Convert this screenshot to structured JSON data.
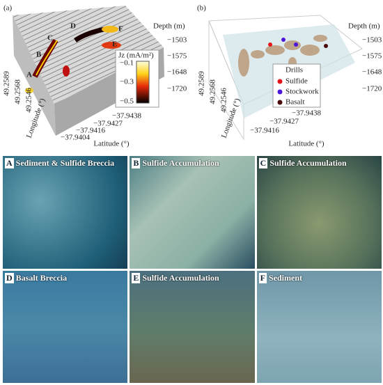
{
  "panel_a": {
    "label": "(a)",
    "depth_label": "Depth (m)",
    "depth_ticks": [
      "−1503",
      "−1575",
      "−1648",
      "−1720"
    ],
    "longitude_label": "Longitude (°)",
    "longitude_ticks": [
      "49.2589",
      "49.2568",
      "49.2546"
    ],
    "latitude_label": "Latitude (°)",
    "latitude_ticks": [
      "−37.9404",
      "−37.9416",
      "−37.9427",
      "−37.9438"
    ],
    "site_labels": [
      "A",
      "B",
      "C",
      "D",
      "E",
      "F"
    ],
    "colorbar": {
      "title": "Jz (mA/m²)",
      "ticks": [
        "−0.1",
        "−0.3",
        "−0.5"
      ]
    }
  },
  "panel_b": {
    "label": "(b)",
    "depth_label": "Depth (m)",
    "depth_ticks": [
      "−1503",
      "−1575",
      "−1648",
      "−1720"
    ],
    "longitude_label": "Longitude (°)",
    "longitude_ticks": [
      "49.2589",
      "49.2568",
      "49.2546"
    ],
    "latitude_label": "Latitude (°)",
    "latitude_ticks": [
      "−37.9416",
      "−37.9427",
      "−37.9438"
    ],
    "legend": {
      "title": "Drills",
      "items": [
        {
          "name": "Sulfide",
          "color": "#e5141b"
        },
        {
          "name": "Stockwork",
          "color": "#4b16d8"
        },
        {
          "name": "Basalt",
          "color": "#4a0a0a"
        }
      ]
    }
  },
  "photos": [
    {
      "letter": "A",
      "caption": "Sediment & Sulfide Breccia"
    },
    {
      "letter": "B",
      "caption": "Sulfide Accumulation"
    },
    {
      "letter": "C",
      "caption": "Sulfide Accumulation"
    },
    {
      "letter": "D",
      "caption": "Basalt Breccia"
    },
    {
      "letter": "E",
      "caption": "Sulfide Accumulation"
    },
    {
      "letter": "F",
      "caption": "Sediment"
    }
  ]
}
